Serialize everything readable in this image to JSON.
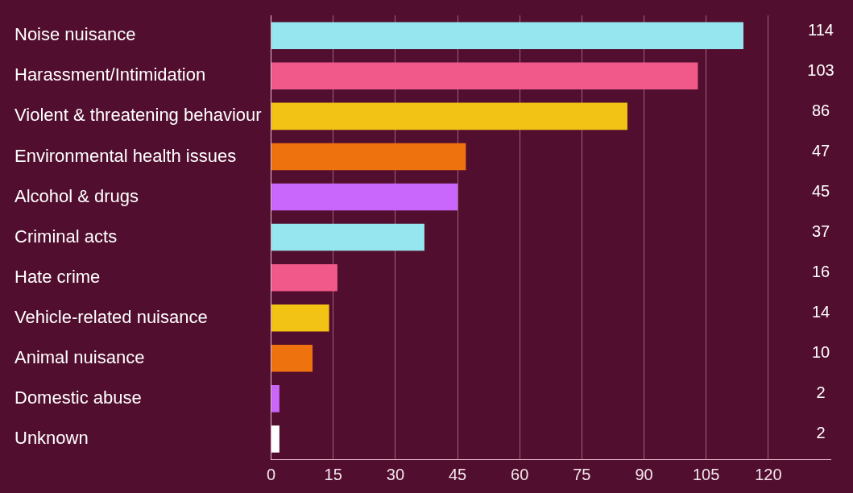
{
  "chart_data": {
    "type": "bar",
    "orientation": "horizontal",
    "categories": [
      "Noise nuisance",
      "Harassment/Intimidation",
      "Violent & threatening behaviour",
      "Environmental health issues",
      "Alcohol & drugs",
      "Criminal acts",
      "Hate crime",
      "Vehicle-related nuisance",
      "Animal nuisance",
      "Domestic abuse",
      "Unknown"
    ],
    "values": [
      114,
      103,
      86,
      47,
      45,
      37,
      16,
      14,
      10,
      2,
      2
    ],
    "colors": [
      "#95e6ee",
      "#f0598a",
      "#f2c314",
      "#ee720e",
      "#c966fb",
      "#95e6ee",
      "#f0598a",
      "#f2c314",
      "#ee720e",
      "#c966fb",
      "#ffffff"
    ],
    "xlim": [
      0,
      135
    ],
    "xticks": [
      0,
      15,
      30,
      45,
      60,
      75,
      90,
      105,
      120
    ],
    "grid": "x",
    "data_labels": true,
    "legend": false
  }
}
